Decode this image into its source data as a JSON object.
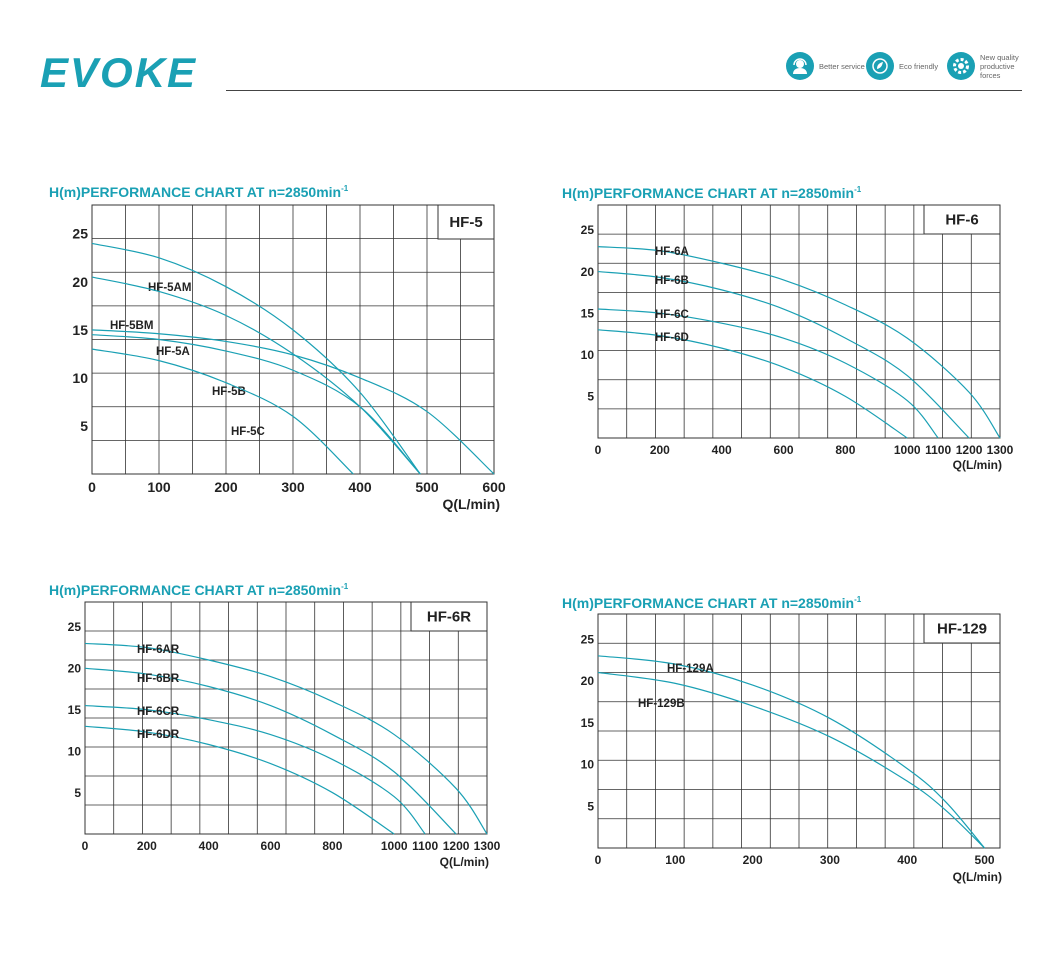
{
  "brand": {
    "logo": "EVOKE"
  },
  "badges": [
    {
      "icon": "headset-icon",
      "text": "Better service"
    },
    {
      "icon": "leaf-icon",
      "text": "Eco friendly"
    },
    {
      "icon": "gear-icon",
      "text": "New quality productive forces"
    }
  ],
  "colors": {
    "accent": "#1aa0b4",
    "grid": "#333333",
    "curve": "#1aa0b4"
  },
  "chart_data": [
    {
      "type": "line",
      "title": "H(m)PERFORMANCE CHART AT n=2850min-1",
      "model": "HF-5",
      "xlabel": "Q(L/min)",
      "ylabel": "",
      "xlim": [
        0,
        600
      ],
      "ylim": [
        0,
        28
      ],
      "xticks": [
        0,
        100,
        200,
        300,
        400,
        500,
        600
      ],
      "yticks": [
        5,
        10,
        15,
        25
      ],
      "yticks_extra": [
        20
      ],
      "grid": true,
      "series": [
        {
          "name": "HF-5AM",
          "x": [
            0,
            100,
            200,
            300,
            400,
            490
          ],
          "y": [
            24,
            22.5,
            19.5,
            15,
            8.5,
            0
          ]
        },
        {
          "name": "HF-5BM",
          "x": [
            0,
            100,
            200,
            300,
            400,
            490
          ],
          "y": [
            20.5,
            19,
            16.5,
            12.5,
            7,
            0
          ]
        },
        {
          "name": "HF-5A",
          "x": [
            0,
            100,
            200,
            300,
            400,
            500,
            600
          ],
          "y": [
            15,
            14.6,
            13.8,
            12.4,
            10,
            6.5,
            0
          ]
        },
        {
          "name": "HF-5B",
          "x": [
            0,
            100,
            200,
            300,
            400,
            490
          ],
          "y": [
            14.5,
            14,
            12.8,
            10.8,
            7,
            0
          ]
        },
        {
          "name": "HF-5C",
          "x": [
            0,
            100,
            200,
            300,
            390
          ],
          "y": [
            13,
            11.8,
            9.5,
            6,
            0
          ]
        }
      ]
    },
    {
      "type": "line",
      "title": "H(m)PERFORMANCE CHART AT n=2850min-1",
      "model": "HF-6",
      "xlabel": "Q(L/min)",
      "ylabel": "",
      "xlim": [
        0,
        1300
      ],
      "ylim": [
        0,
        28
      ],
      "xticks": [
        0,
        200,
        400,
        600,
        800,
        1000,
        1100,
        1200,
        1300
      ],
      "yticks": [
        5,
        10,
        15,
        20,
        25
      ],
      "grid": true,
      "series": [
        {
          "name": "HF-6A",
          "x": [
            0,
            200,
            400,
            600,
            800,
            1000,
            1200,
            1300
          ],
          "y": [
            23,
            22.5,
            21,
            19,
            16,
            12,
            5.5,
            0
          ]
        },
        {
          "name": "HF-6B",
          "x": [
            0,
            200,
            400,
            600,
            800,
            1000,
            1200
          ],
          "y": [
            20,
            19.3,
            17.8,
            15.5,
            12,
            7.5,
            0
          ]
        },
        {
          "name": "HF-6C",
          "x": [
            0,
            200,
            400,
            600,
            800,
            1000,
            1100
          ],
          "y": [
            15.5,
            15,
            13.8,
            12,
            9,
            4.5,
            0
          ]
        },
        {
          "name": "HF-6D",
          "x": [
            0,
            200,
            400,
            600,
            800,
            1000
          ],
          "y": [
            13,
            12.3,
            10.8,
            8.5,
            5,
            0
          ]
        }
      ]
    },
    {
      "type": "line",
      "title": "H(m)PERFORMANCE CHART AT n=2850min-1",
      "model": "HF-6R",
      "xlabel": "Q(L/min)",
      "ylabel": "",
      "xlim": [
        0,
        1300
      ],
      "ylim": [
        0,
        28
      ],
      "xticks": [
        0,
        200,
        400,
        600,
        800,
        1000,
        1100,
        1200,
        1300
      ],
      "yticks": [
        5,
        10,
        15,
        20,
        25
      ],
      "grid": true,
      "series": [
        {
          "name": "HF-6AR",
          "x": [
            0,
            200,
            400,
            600,
            800,
            1000,
            1200,
            1300
          ],
          "y": [
            23,
            22.5,
            21,
            19,
            16,
            12,
            5.5,
            0
          ]
        },
        {
          "name": "HF-6BR",
          "x": [
            0,
            200,
            400,
            600,
            800,
            1000,
            1200
          ],
          "y": [
            20,
            19.3,
            17.8,
            15.5,
            12,
            7.5,
            0
          ]
        },
        {
          "name": "HF-6CR",
          "x": [
            0,
            200,
            400,
            600,
            800,
            1000,
            1100
          ],
          "y": [
            15.5,
            15,
            13.8,
            12,
            9,
            4.5,
            0
          ]
        },
        {
          "name": "HF-6DR",
          "x": [
            0,
            200,
            400,
            600,
            800,
            1000
          ],
          "y": [
            13,
            12.3,
            10.8,
            8.5,
            5,
            0
          ]
        }
      ]
    },
    {
      "type": "line",
      "title": "H(m)PERFORMANCE CHART AT n=2850min-1",
      "model": "HF-129",
      "xlabel": "Q(L/min)",
      "ylabel": "",
      "xlim": [
        0,
        520
      ],
      "ylim": [
        0,
        28
      ],
      "xticks": [
        0,
        100,
        200,
        300,
        400,
        500
      ],
      "yticks": [
        5,
        10,
        15,
        20,
        25
      ],
      "grid": true,
      "series": [
        {
          "name": "HF-129A",
          "x": [
            0,
            100,
            200,
            300,
            400,
            450,
            500
          ],
          "y": [
            23,
            22,
            19.5,
            15.5,
            9.5,
            5.5,
            0
          ]
        },
        {
          "name": "HF-129B",
          "x": [
            0,
            100,
            200,
            300,
            400,
            450,
            500
          ],
          "y": [
            21,
            19.7,
            17,
            13.3,
            8,
            4.5,
            0
          ]
        }
      ]
    }
  ]
}
